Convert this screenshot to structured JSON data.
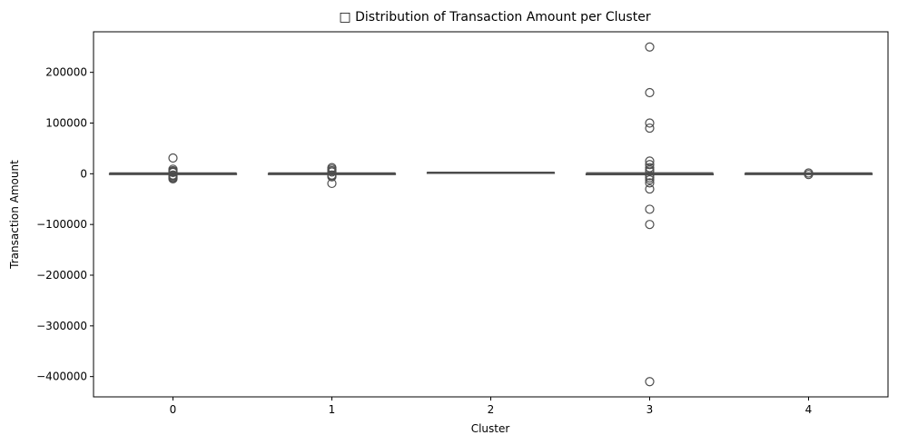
{
  "chart_data": {
    "type": "box",
    "title": "□ Distribution of Transaction Amount per Cluster",
    "xlabel": "Cluster",
    "ylabel": "Transaction Amount",
    "categories": [
      "0",
      "1",
      "2",
      "3",
      "4"
    ],
    "ylim": [
      -440000,
      280000
    ],
    "yticks": [
      -400000,
      -300000,
      -200000,
      -100000,
      0,
      100000,
      200000
    ],
    "ytick_labels": [
      "−400000",
      "−300000",
      "−200000",
      "−100000",
      "0",
      "100000",
      "200000"
    ],
    "grid": false,
    "box_color": "#d9d9d9",
    "line_color": "#4d4d4d",
    "boxes": [
      {
        "cluster": "0",
        "whisker_low": -1500,
        "q1": -200,
        "median": 100,
        "q3": 400,
        "whisker_high": 1800,
        "outliers": [
          31000,
          9000,
          6000,
          4000,
          2500,
          -2500,
          -4000,
          -6000,
          -8000,
          -10000
        ]
      },
      {
        "cluster": "1",
        "whisker_low": -1500,
        "q1": -200,
        "median": 100,
        "q3": 400,
        "whisker_high": 1800,
        "outliers": [
          12000,
          9000,
          6000,
          3500,
          -2500,
          -4000,
          -6000,
          -19000
        ]
      },
      {
        "cluster": "2",
        "whisker_low": 800,
        "q1": 1500,
        "median": 2000,
        "q3": 2600,
        "whisker_high": 3200,
        "outliers": []
      },
      {
        "cluster": "3",
        "whisker_low": -2000,
        "q1": -2000,
        "median": -500,
        "q3": 0,
        "whisker_high": 2000,
        "outliers": [
          250000,
          160000,
          100000,
          90000,
          25000,
          18000,
          12000,
          8000,
          5000,
          -4000,
          -8000,
          -12000,
          -18000,
          -30000,
          -70000,
          -100000,
          -410000
        ]
      },
      {
        "cluster": "4",
        "whisker_low": -1500,
        "q1": -200,
        "median": 100,
        "q3": 400,
        "whisker_high": 1800,
        "outliers": [
          1500,
          -1500
        ]
      }
    ]
  }
}
